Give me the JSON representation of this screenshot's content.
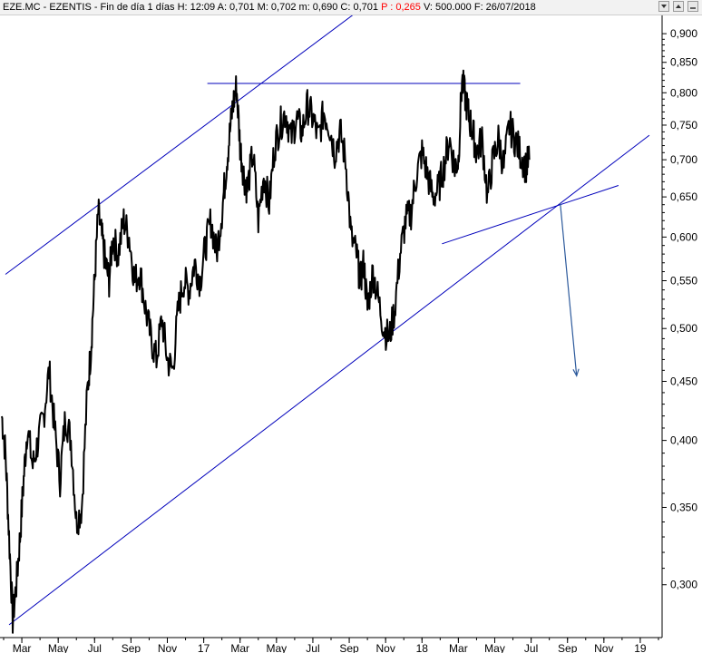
{
  "header": {
    "title": "EZE.MC - EZENTIS - Fin de día 1 días",
    "high": "H: 12:09",
    "open": "A: 0,701",
    "max": "M: 0,702",
    "min": "m: 0,690",
    "close": "C: 0,701",
    "perf": "P : 0,265",
    "volume": "V: 500.000",
    "date": "F: 26/07/2018"
  },
  "colors": {
    "price": "#000000",
    "trendline": "#0000bb",
    "projection": "#2d5a9c",
    "header_bg": "#f2f2f2",
    "perf_text": "#ff0000"
  },
  "icons": [
    "down-arrow-icon",
    "up-arrow-icon",
    "minimize-icon"
  ],
  "chart_data": {
    "type": "line",
    "scale": "log",
    "ylim": [
      0.27,
      0.93
    ],
    "y_ticks": [
      0.3,
      0.35,
      0.4,
      0.45,
      0.5,
      0.55,
      0.6,
      0.65,
      0.7,
      0.75,
      0.8,
      0.85,
      0.9
    ],
    "y_tick_labels": [
      "0,300",
      "0,350",
      "0,400",
      "0,450",
      "0,500",
      "0,550",
      "0,600",
      "0,650",
      "0,700",
      "0,750",
      "0,800",
      "0,850",
      "0,900"
    ],
    "x_tick_labels": [
      "Mar",
      "May",
      "Jul",
      "Sep",
      "Nov",
      "17",
      "Mar",
      "May",
      "Jul",
      "Sep",
      "Nov",
      "18",
      "Mar",
      "May",
      "Jul",
      "Sep",
      "Nov",
      "19"
    ],
    "x_tick_months": [
      2,
      4,
      6,
      8,
      10,
      12,
      14,
      16,
      18,
      20,
      22,
      24,
      26,
      28,
      30,
      32,
      34,
      36
    ],
    "xlim_months": [
      0.8,
      37.2
    ],
    "series": [
      {
        "x_months": [
          0.9,
          1.1,
          1.3,
          1.5,
          1.7,
          1.9,
          2.1,
          2.3,
          2.6,
          2.9,
          3.2,
          3.5,
          3.8,
          4.1,
          4.4,
          4.7,
          5.0,
          5.3,
          5.6,
          5.8,
          6.0,
          6.2,
          6.4,
          6.6,
          6.8,
          7.0,
          7.3,
          7.6,
          7.9,
          8.2,
          8.5,
          8.8,
          9.1,
          9.4,
          9.7,
          10.0,
          10.3,
          10.6,
          10.9,
          11.2,
          11.5,
          11.8,
          12.1,
          12.4,
          12.7,
          13.0,
          13.2,
          13.4,
          13.6,
          13.8,
          14.0,
          14.2,
          14.4,
          14.7,
          15.0,
          15.3,
          15.6,
          15.9,
          16.2,
          16.5,
          16.8,
          17.1,
          17.4,
          17.7,
          18.0,
          18.3,
          18.6,
          18.9,
          19.2,
          19.5,
          19.8,
          20.1,
          20.4,
          20.6,
          20.8,
          21.0,
          21.3,
          21.6,
          21.9,
          22.2,
          22.5,
          22.8,
          23.1,
          23.4,
          23.7,
          24.0,
          24.3,
          24.6,
          24.9,
          25.2,
          25.5,
          25.8,
          26.0,
          26.2,
          26.4,
          26.6,
          26.8,
          27.0,
          27.3,
          27.6,
          27.9,
          28.2,
          28.5,
          28.8,
          29.1,
          29.4,
          29.7,
          29.9
        ],
        "values": [
          0.42,
          0.39,
          0.33,
          0.28,
          0.3,
          0.33,
          0.37,
          0.41,
          0.38,
          0.4,
          0.42,
          0.46,
          0.41,
          0.37,
          0.42,
          0.4,
          0.34,
          0.35,
          0.44,
          0.48,
          0.55,
          0.63,
          0.6,
          0.57,
          0.55,
          0.6,
          0.58,
          0.62,
          0.6,
          0.55,
          0.56,
          0.52,
          0.49,
          0.47,
          0.51,
          0.47,
          0.46,
          0.52,
          0.55,
          0.54,
          0.57,
          0.55,
          0.59,
          0.62,
          0.58,
          0.63,
          0.68,
          0.73,
          0.78,
          0.81,
          0.72,
          0.68,
          0.66,
          0.71,
          0.62,
          0.68,
          0.64,
          0.72,
          0.75,
          0.77,
          0.73,
          0.76,
          0.74,
          0.78,
          0.76,
          0.73,
          0.77,
          0.75,
          0.71,
          0.74,
          0.7,
          0.6,
          0.58,
          0.55,
          0.57,
          0.52,
          0.56,
          0.53,
          0.5,
          0.49,
          0.52,
          0.58,
          0.62,
          0.63,
          0.68,
          0.71,
          0.68,
          0.65,
          0.66,
          0.69,
          0.73,
          0.69,
          0.7,
          0.82,
          0.79,
          0.76,
          0.74,
          0.71,
          0.73,
          0.65,
          0.7,
          0.73,
          0.69,
          0.75,
          0.73,
          0.71,
          0.69,
          0.7
        ]
      }
    ],
    "trendlines": [
      {
        "name": "upper-channel",
        "x": [
          1.1,
          20.7
        ],
        "y": [
          0.557,
          0.947
        ]
      },
      {
        "name": "lower-channel",
        "x": [
          1.3,
          36.5
        ],
        "y": [
          0.277,
          0.735
        ]
      },
      {
        "name": "resistance",
        "x": [
          12.2,
          29.4
        ],
        "y": [
          0.815,
          0.815
        ]
      },
      {
        "name": "rising-support",
        "x": [
          25.1,
          34.8
        ],
        "y": [
          0.592,
          0.665
        ]
      }
    ],
    "projection_arrow": {
      "x": [
        31.6,
        32.5
      ],
      "y": [
        0.642,
        0.455
      ]
    },
    "grid": false
  }
}
